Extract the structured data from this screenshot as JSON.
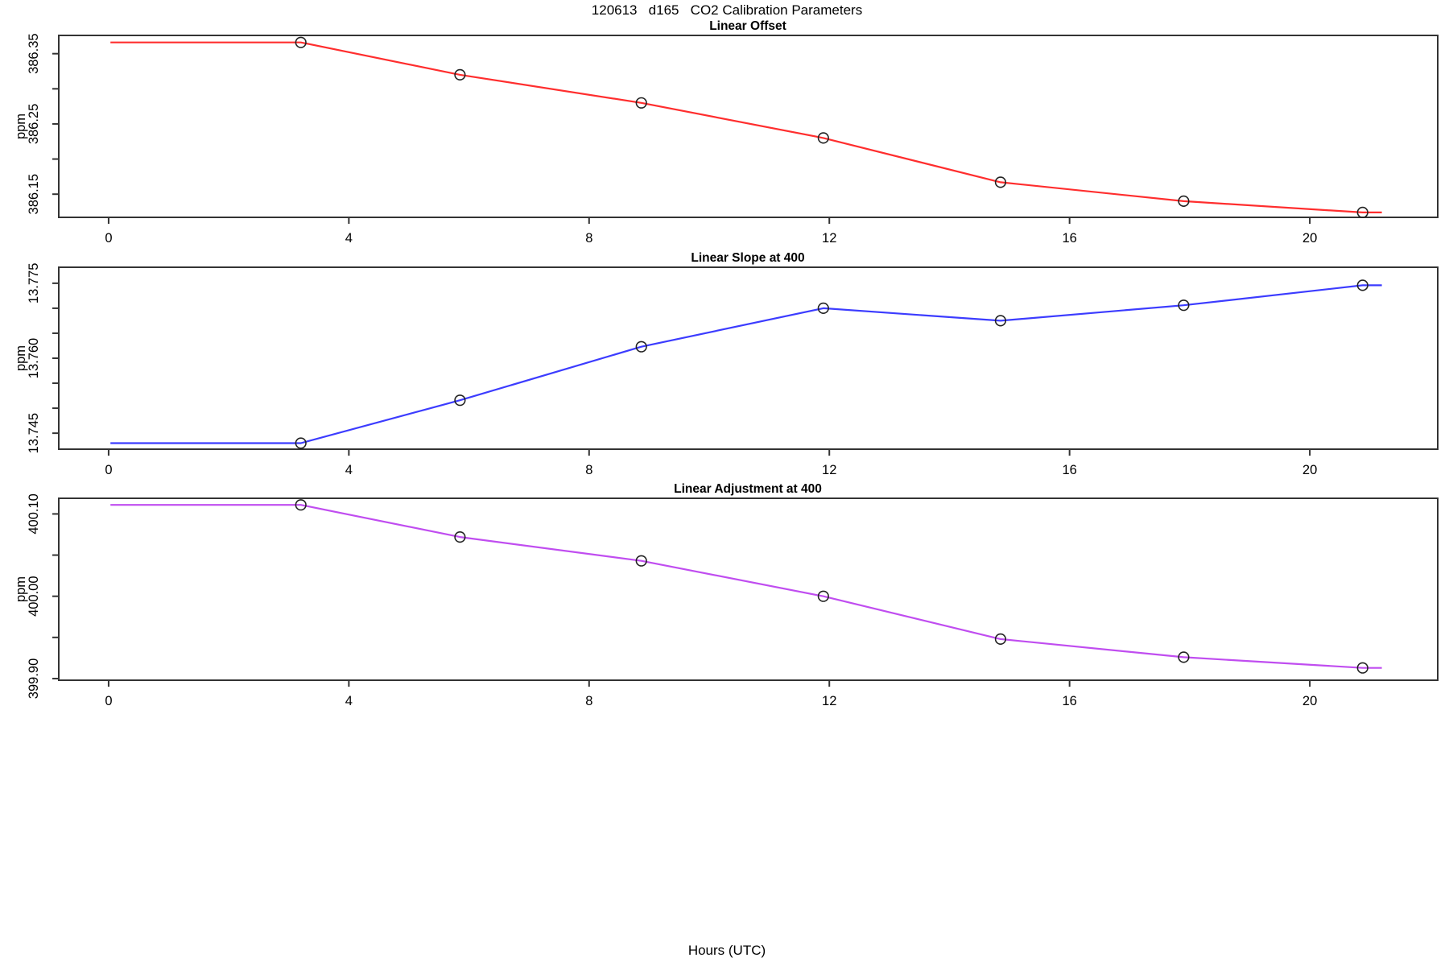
{
  "header": {
    "title": "120613   d165   CO2 Calibration Parameters"
  },
  "footer": {
    "xlabel": "Hours (UTC)"
  },
  "chart_data": [
    {
      "type": "line",
      "title": "Linear Offset",
      "ylabel": "ppm",
      "color": "#ff2e2e",
      "marker": "open-circle",
      "marker_color": "#222222",
      "grid": false,
      "legend": "none",
      "x": [
        3.2,
        5.85,
        8.87,
        11.9,
        14.85,
        17.9,
        20.88
      ],
      "y": [
        386.366,
        386.32,
        386.28,
        386.23,
        386.167,
        386.14,
        386.124
      ],
      "line_x": [
        0.03,
        3.2,
        5.85,
        8.87,
        11.9,
        14.85,
        17.9,
        20.88,
        21.2
      ],
      "line_y": [
        386.366,
        386.366,
        386.32,
        386.28,
        386.23,
        386.167,
        386.14,
        386.124,
        386.124
      ],
      "xlim": [
        -0.83,
        22.13
      ],
      "ylim": [
        386.117,
        386.376
      ],
      "x_ticks": [
        0,
        4,
        8,
        12,
        16,
        20
      ],
      "y_ticks": [
        {
          "v": 386.15,
          "label": "386.15"
        },
        {
          "v": 386.2,
          "label": ""
        },
        {
          "v": 386.25,
          "label": "386.25"
        },
        {
          "v": 386.3,
          "label": ""
        },
        {
          "v": 386.35,
          "label": "386.35"
        }
      ]
    },
    {
      "type": "line",
      "title": "Linear Slope at 400",
      "ylabel": "ppm",
      "color": "#3c3cff",
      "marker": "open-circle",
      "marker_color": "#222222",
      "grid": false,
      "legend": "none",
      "x": [
        3.2,
        5.85,
        8.87,
        11.9,
        14.85,
        17.9,
        20.88
      ],
      "y": [
        13.743,
        13.7516,
        13.7623,
        13.77,
        13.7675,
        13.7706,
        13.7746
      ],
      "line_x": [
        0.03,
        3.2,
        5.85,
        8.87,
        11.9,
        14.85,
        17.9,
        20.88,
        21.2
      ],
      "line_y": [
        13.743,
        13.743,
        13.7516,
        13.7623,
        13.77,
        13.7675,
        13.7706,
        13.7746,
        13.7746
      ],
      "xlim": [
        -0.83,
        22.13
      ],
      "ylim": [
        13.7418,
        13.7782
      ],
      "x_ticks": [
        0,
        4,
        8,
        12,
        16,
        20
      ],
      "y_ticks": [
        {
          "v": 13.745,
          "label": "13.745"
        },
        {
          "v": 13.75,
          "label": ""
        },
        {
          "v": 13.755,
          "label": ""
        },
        {
          "v": 13.76,
          "label": "13.760"
        },
        {
          "v": 13.765,
          "label": ""
        },
        {
          "v": 13.77,
          "label": ""
        },
        {
          "v": 13.775,
          "label": "13.775"
        }
      ]
    },
    {
      "type": "line",
      "title": "Linear Adjustment at 400",
      "ylabel": "ppm",
      "color": "#c04df0",
      "marker": "open-circle",
      "marker_color": "#222222",
      "grid": false,
      "legend": "none",
      "x": [
        3.2,
        5.85,
        8.87,
        11.9,
        14.85,
        17.9,
        20.88
      ],
      "y": [
        400.111,
        400.072,
        400.043,
        400.0,
        399.948,
        399.926,
        399.913
      ],
      "line_x": [
        0.03,
        3.2,
        5.85,
        8.87,
        11.9,
        14.85,
        17.9,
        20.88,
        21.2
      ],
      "line_y": [
        400.111,
        400.111,
        400.072,
        400.043,
        400.0,
        399.948,
        399.926,
        399.913,
        399.913
      ],
      "xlim": [
        -0.83,
        22.13
      ],
      "ylim": [
        399.898,
        400.119
      ],
      "x_ticks": [
        0,
        4,
        8,
        12,
        16,
        20
      ],
      "y_ticks": [
        {
          "v": 399.9,
          "label": "399.90"
        },
        {
          "v": 399.95,
          "label": ""
        },
        {
          "v": 400.0,
          "label": "400.00"
        },
        {
          "v": 400.05,
          "label": ""
        },
        {
          "v": 400.1,
          "label": "400.10"
        }
      ]
    }
  ]
}
